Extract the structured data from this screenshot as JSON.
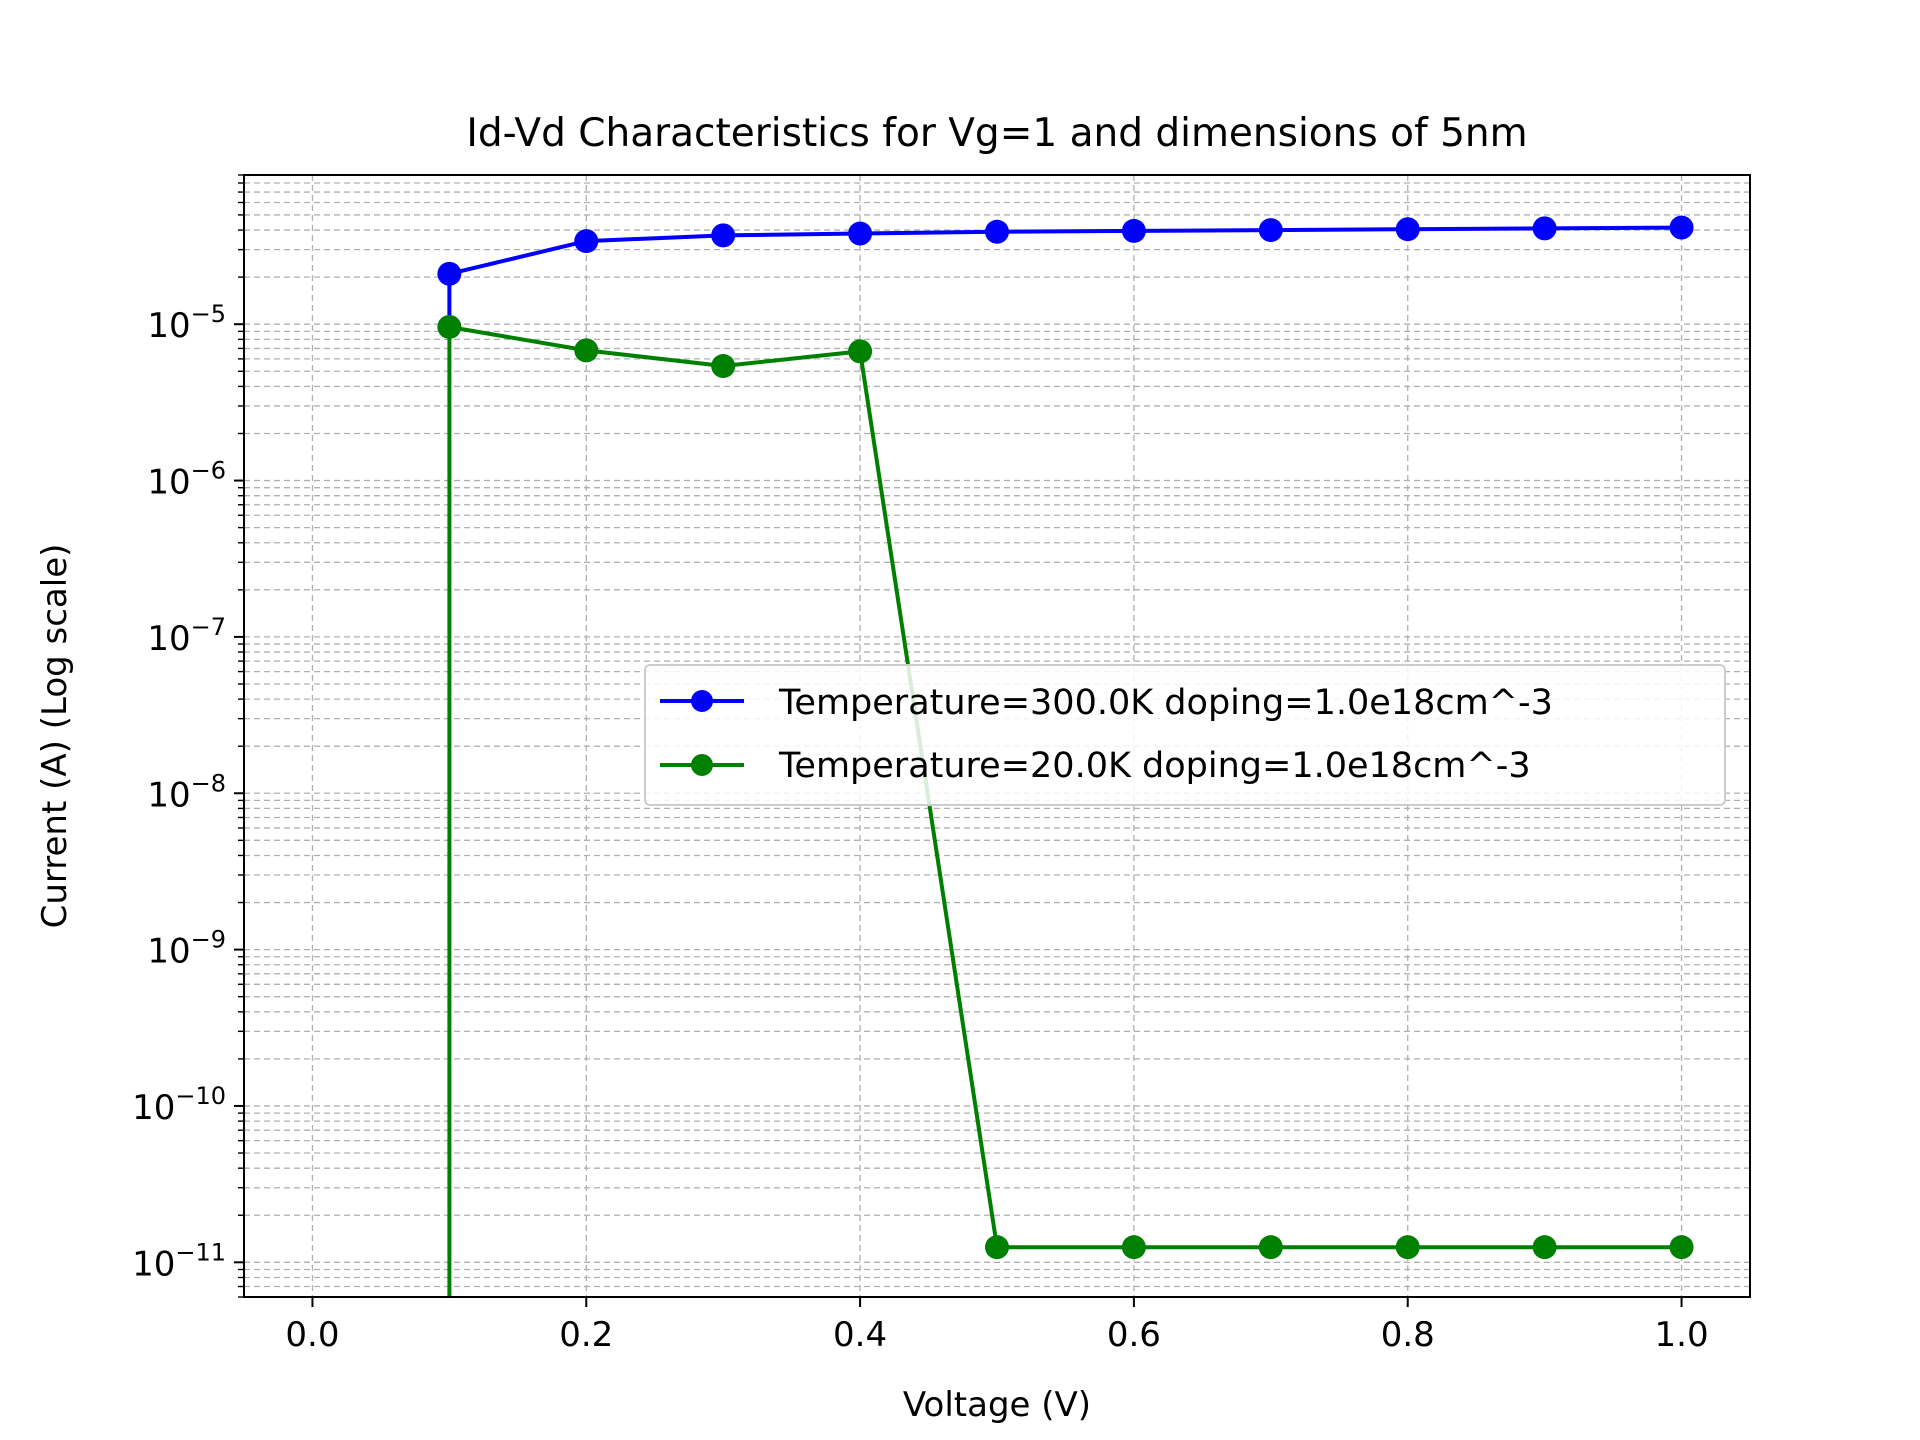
{
  "chart_data": {
    "type": "line",
    "title": "Id-Vd Characteristics for Vg=1 and dimensions of 5nm",
    "xlabel": "Voltage (V)",
    "ylabel": "Current (A) (Log scale)",
    "xlim": [
      -0.05,
      1.05
    ],
    "ylim": [
      6e-12,
      9e-05
    ],
    "yscale": "log",
    "grid": true,
    "legend_position": "center-right",
    "x_ticks": [
      "0.0",
      "0.2",
      "0.4",
      "0.6",
      "0.8",
      "1.0"
    ],
    "x_tick_values": [
      0.0,
      0.2,
      0.4,
      0.6,
      0.8,
      1.0
    ],
    "y_ticks": [
      {
        "base": "10",
        "exp": "−11",
        "value": 1e-11
      },
      {
        "base": "10",
        "exp": "−10",
        "value": 1e-10
      },
      {
        "base": "10",
        "exp": "−9",
        "value": 1e-09
      },
      {
        "base": "10",
        "exp": "−8",
        "value": 1e-08
      },
      {
        "base": "10",
        "exp": "−7",
        "value": 1e-07
      },
      {
        "base": "10",
        "exp": "−6",
        "value": 1e-06
      },
      {
        "base": "10",
        "exp": "−5",
        "value": 1e-05
      }
    ],
    "series": [
      {
        "name": "Temperature=300.0K doping=1.0e18cm^-3",
        "color": "#0000ff",
        "x": [
          0.1,
          0.1,
          0.2,
          0.3,
          0.4,
          0.5,
          0.6,
          0.7,
          0.8,
          0.9,
          1.0
        ],
        "y": [
          9.5e-06,
          2.1e-05,
          3.4e-05,
          3.7e-05,
          3.8e-05,
          3.9e-05,
          3.95e-05,
          4e-05,
          4.05e-05,
          4.1e-05,
          4.15e-05
        ],
        "markers": [
          false,
          true,
          true,
          true,
          true,
          true,
          true,
          true,
          true,
          true,
          true
        ]
      },
      {
        "name": "Temperature=20.0K doping=1.0e18cm^-3",
        "color": "#008000",
        "x": [
          0.1,
          0.1,
          0.2,
          0.3,
          0.4,
          0.5,
          0.6,
          0.7,
          0.8,
          0.9,
          1.0
        ],
        "y": [
          1e-14,
          9.6e-06,
          6.8e-06,
          5.4e-06,
          6.7e-06,
          1.25e-11,
          1.25e-11,
          1.25e-11,
          1.25e-11,
          1.25e-11,
          1.25e-11
        ],
        "markers": [
          false,
          true,
          true,
          true,
          true,
          true,
          true,
          true,
          true,
          true,
          true
        ]
      }
    ]
  }
}
